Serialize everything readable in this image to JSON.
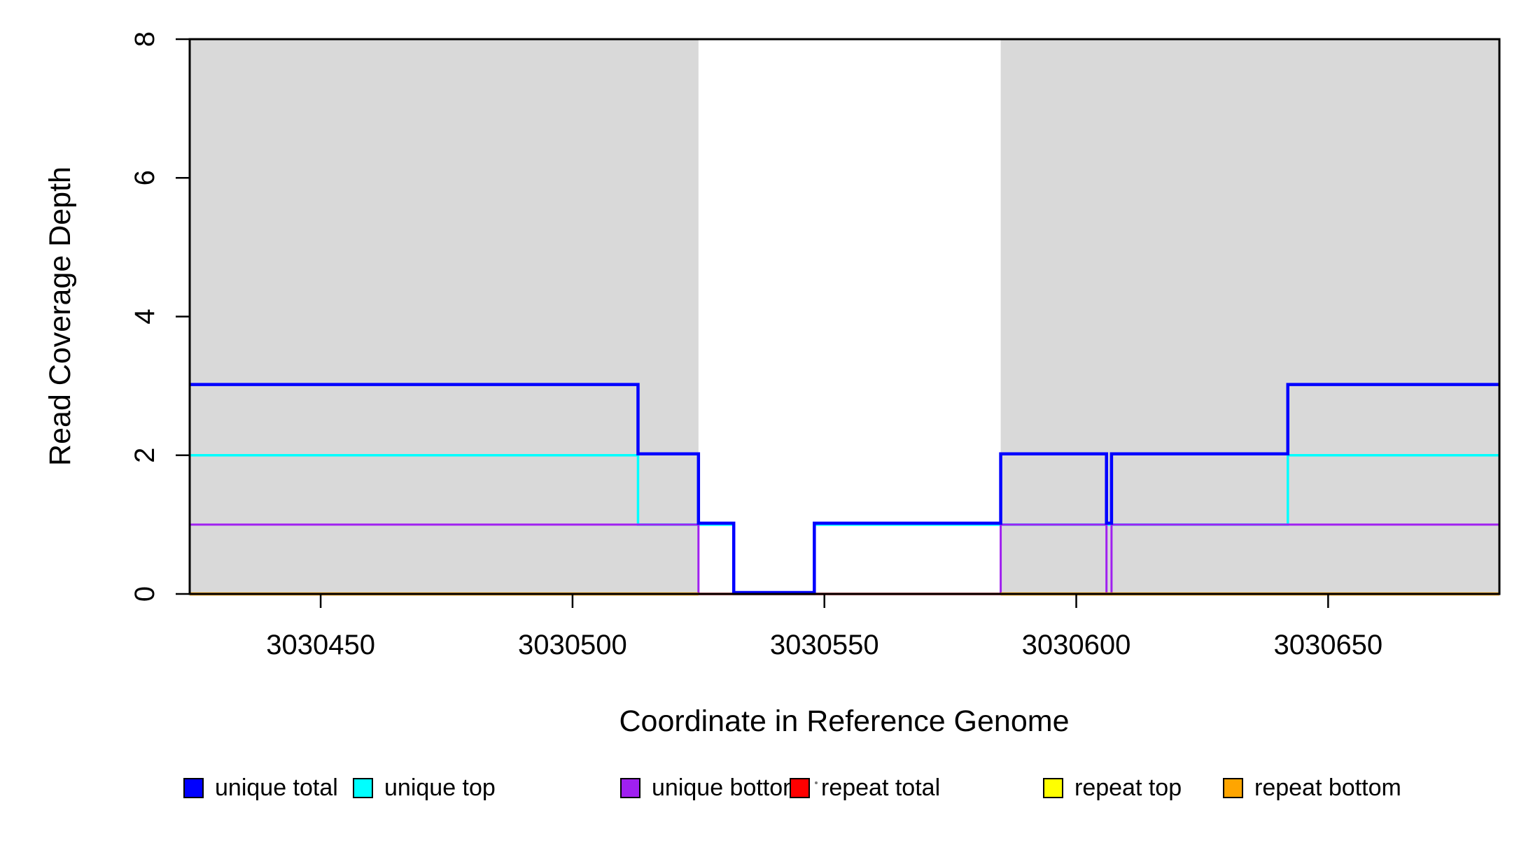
{
  "figure": {
    "xlabel": "Coordinate in Reference Genome",
    "ylabel": "Read Coverage Depth"
  },
  "chart_data": {
    "type": "line",
    "subtype": "step-coverage",
    "title": "",
    "xlabel": "Coordinate in Reference Genome",
    "ylabel": "Read Coverage Depth",
    "xlim": [
      3030424,
      3030684
    ],
    "ylim": [
      0,
      8
    ],
    "x_ticks": [
      3030450,
      3030500,
      3030550,
      3030600,
      3030650
    ],
    "y_ticks": [
      0,
      2,
      4,
      6,
      8
    ],
    "grid": false,
    "legend_position": "bottom",
    "plot_background": "#ffffff",
    "box_color": "#000000",
    "shaded_regions": [
      {
        "from": 3030424,
        "to": 3030525,
        "color": "#d9d9d9"
      },
      {
        "from": 3030585,
        "to": 3030684,
        "color": "#d9d9d9"
      }
    ],
    "series": [
      {
        "name": "unique total",
        "color": "#0000ff",
        "lw": 4.5,
        "paint_order": 6,
        "dy": -2,
        "runs": [
          [
            [
              3030424,
              3
            ],
            [
              3030513,
              2
            ],
            [
              3030525,
              1
            ],
            [
              3030532,
              0
            ],
            [
              3030548,
              1
            ],
            [
              3030585,
              2
            ],
            [
              3030606,
              1
            ],
            [
              3030607,
              2
            ],
            [
              3030642,
              3
            ],
            [
              3030684,
              3
            ]
          ]
        ]
      },
      {
        "name": "unique top",
        "color": "#00ffff",
        "lw": 3.5,
        "paint_order": 1,
        "dy": 0,
        "runs": [
          [
            [
              3030424,
              2
            ],
            [
              3030513,
              1
            ],
            [
              3030532,
              0
            ],
            [
              3030548,
              1
            ],
            [
              3030642,
              2
            ],
            [
              3030684,
              2
            ]
          ]
        ]
      },
      {
        "name": "unique bottom",
        "color": "#a020f0",
        "lw": 3,
        "paint_order": 2,
        "dy": 0,
        "runs": [
          [
            [
              3030424,
              1
            ],
            [
              3030525,
              0
            ],
            [
              3030585,
              1
            ],
            [
              3030606,
              0
            ],
            [
              3030607,
              1
            ],
            [
              3030684,
              1
            ]
          ]
        ]
      },
      {
        "name": "repeat total",
        "color": "#ff0000",
        "lw": 3.5,
        "paint_order": 4,
        "dy": 0,
        "runs": [
          [
            [
              3030424,
              0
            ],
            [
              3030684,
              0
            ]
          ]
        ]
      },
      {
        "name": "repeat top",
        "color": "#ffff00",
        "lw": 3,
        "paint_order": 3,
        "dy": 0,
        "runs": [
          [
            [
              3030424,
              0
            ],
            [
              3030684,
              0
            ]
          ]
        ]
      },
      {
        "name": "repeat bottom",
        "color": "#ffa500",
        "lw": 4.5,
        "paint_order": 5,
        "dy": 0,
        "runs": [
          [
            [
              3030424,
              0
            ],
            [
              3030525,
              0
            ]
          ],
          [
            [
              3030585,
              0
            ],
            [
              3030684,
              0
            ]
          ]
        ]
      }
    ]
  }
}
